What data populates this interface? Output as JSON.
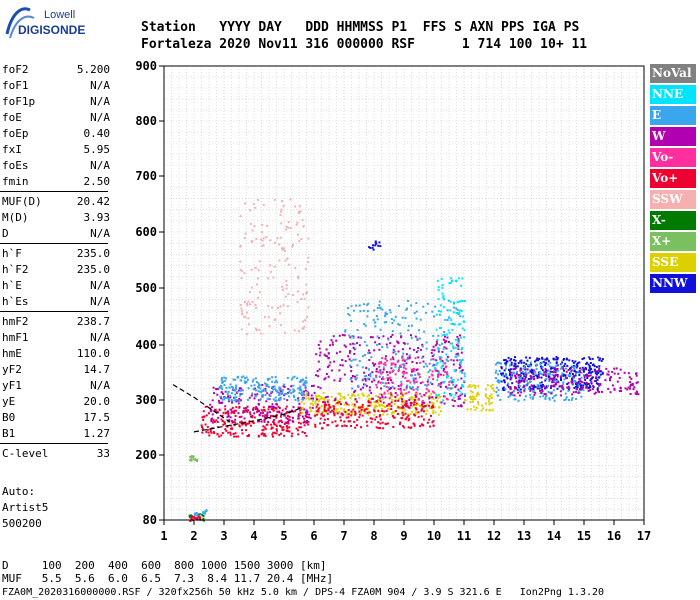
{
  "logo": {
    "line1": "Lowell",
    "line2": "DIGISONDE"
  },
  "header": {
    "labels": "Station   YYYY DAY   DDD HHMMSS P1  FFS S AXN PPS IGA PS",
    "values": "Fortaleza 2020 Nov11 316 000000 RSF      1 714 100 10+ 11"
  },
  "params": {
    "group1": [
      {
        "name": "foF2",
        "value": "5.200"
      },
      {
        "name": "foF1",
        "value": "N/A"
      },
      {
        "name": "foF1p",
        "value": "N/A"
      },
      {
        "name": "foE",
        "value": "N/A"
      },
      {
        "name": "foEp",
        "value": "0.40"
      },
      {
        "name": "fxI",
        "value": "5.95"
      },
      {
        "name": "foEs",
        "value": "N/A"
      },
      {
        "name": "fmin",
        "value": "2.50"
      }
    ],
    "group2": [
      {
        "name": "MUF(D)",
        "value": "20.42"
      },
      {
        "name": "M(D)",
        "value": "3.93"
      },
      {
        "name": "D",
        "value": "N/A"
      }
    ],
    "group3": [
      {
        "name": "h`F",
        "value": "235.0"
      },
      {
        "name": "h`F2",
        "value": "235.0"
      },
      {
        "name": "h`E",
        "value": "N/A"
      },
      {
        "name": "h`Es",
        "value": "N/A"
      }
    ],
    "group4": [
      {
        "name": "hmF2",
        "value": "238.7"
      },
      {
        "name": "hmF1",
        "value": "N/A"
      },
      {
        "name": "hmE",
        "value": "110.0"
      },
      {
        "name": "yF2",
        "value": "14.7"
      },
      {
        "name": "yF1",
        "value": "N/A"
      },
      {
        "name": "yE",
        "value": "20.0"
      },
      {
        "name": "B0",
        "value": "17.5"
      },
      {
        "name": "B1",
        "value": "1.27"
      }
    ],
    "group5": [
      {
        "name": "C-level",
        "value": "33"
      }
    ],
    "autoscale": [
      "Auto:",
      "Artist5",
      "500200"
    ]
  },
  "legend": [
    {
      "label": "NoVal",
      "color": "#808080"
    },
    {
      "label": "NNE",
      "color": "#00e5ff"
    },
    {
      "label": "E",
      "color": "#3aa6ee"
    },
    {
      "label": "W",
      "color": "#b000b0"
    },
    {
      "label": "Vo-",
      "color": "#ff2fa0"
    },
    {
      "label": "Vo+",
      "color": "#ee0030"
    },
    {
      "label": "SSW",
      "color": "#f6b0b0"
    },
    {
      "label": "X-",
      "color": "#007a00"
    },
    {
      "label": "X+",
      "color": "#7ac060"
    },
    {
      "label": "SSE",
      "color": "#dcd000"
    },
    {
      "label": "NNW",
      "color": "#1010d8"
    }
  ],
  "bottom": {
    "d_line": "D     100  200  400  600  800 1000 1500 3000 [km]",
    "muf_line": "MUF   5.5  5.6  6.0  6.5  7.3  8.4 11.7 20.4 [MHz]",
    "file_line": "FZA0M_2020316000000.RSF / 320fx256h 50 kHz 5.0 km / DPS-4 FZA0M 904 / 3.9 S 321.6 E   Ion2Png 1.3.20"
  },
  "chart_data": {
    "type": "scatter",
    "title": "",
    "xlabel": "",
    "ylabel": "",
    "xlim": [
      1,
      17
    ],
    "ylim": [
      80,
      900
    ],
    "x_ticks": [
      "1",
      "2",
      "3",
      "4",
      "5",
      "6",
      "7",
      "8",
      "9",
      "10",
      "11",
      "12",
      "13",
      "14",
      "15",
      "16",
      "17"
    ],
    "y_ticks": [
      "80",
      "200",
      "300",
      "400",
      "500",
      "600",
      "700",
      "800",
      "900"
    ],
    "grid": true,
    "legend_position": "right",
    "profile_curve": [
      [
        2.0,
        242
      ],
      [
        3.0,
        252
      ],
      [
        4.0,
        262
      ],
      [
        5.0,
        274
      ],
      [
        5.6,
        286
      ]
    ],
    "trace_curve": [
      [
        1.3,
        328
      ],
      [
        2.0,
        305
      ],
      [
        2.6,
        282
      ],
      [
        3.2,
        260
      ]
    ],
    "clusters": [
      {
        "dir": "Vo+",
        "x": [
          2.2,
          5.8
        ],
        "y": [
          235,
          290
        ],
        "n": 260
      },
      {
        "dir": "W",
        "x": [
          2.5,
          6.0
        ],
        "y": [
          260,
          330
        ],
        "n": 200
      },
      {
        "dir": "E",
        "x": [
          2.8,
          5.8
        ],
        "y": [
          300,
          345
        ],
        "n": 200
      },
      {
        "dir": "SSE",
        "x": [
          5.5,
          10.2
        ],
        "y": [
          275,
          315
        ],
        "n": 260
      },
      {
        "dir": "Vo+",
        "x": [
          6.0,
          10.0
        ],
        "y": [
          250,
          300
        ],
        "n": 220
      },
      {
        "dir": "W",
        "x": [
          6.0,
          11.0
        ],
        "y": [
          290,
          420
        ],
        "n": 320
      },
      {
        "dir": "E",
        "x": [
          7.0,
          11.0
        ],
        "y": [
          320,
          480
        ],
        "n": 220
      },
      {
        "dir": "NNE",
        "x": [
          10.0,
          11.0
        ],
        "y": [
          300,
          520
        ],
        "n": 120
      },
      {
        "dir": "Vo-",
        "x": [
          8.0,
          10.6
        ],
        "y": [
          300,
          380
        ],
        "n": 120
      },
      {
        "dir": "SSW",
        "x": [
          3.5,
          5.8
        ],
        "y": [
          420,
          660
        ],
        "n": 160
      },
      {
        "dir": "NNW",
        "x": [
          12.2,
          15.6
        ],
        "y": [
          320,
          380
        ],
        "n": 360
      },
      {
        "dir": "E",
        "x": [
          12.0,
          15.0
        ],
        "y": [
          300,
          370
        ],
        "n": 180
      },
      {
        "dir": "W",
        "x": [
          12.5,
          16.8
        ],
        "y": [
          310,
          360
        ],
        "n": 200
      },
      {
        "dir": "NNW",
        "x": [
          7.8,
          8.2
        ],
        "y": [
          570,
          585
        ],
        "n": 12
      },
      {
        "dir": "SSE",
        "x": [
          11.0,
          12.0
        ],
        "y": [
          280,
          330
        ],
        "n": 60
      },
      {
        "dir": "Vo+",
        "x": [
          1.8,
          2.2
        ],
        "y": [
          80,
          90
        ],
        "n": 20
      },
      {
        "dir": "E",
        "x": [
          1.9,
          2.4
        ],
        "y": [
          90,
          100
        ],
        "n": 15
      },
      {
        "dir": "X+",
        "x": [
          1.8,
          2.1
        ],
        "y": [
          190,
          200
        ],
        "n": 15
      },
      {
        "dir": "X-",
        "x": [
          1.8,
          2.3
        ],
        "y": [
          80,
          95
        ],
        "n": 10
      }
    ]
  }
}
